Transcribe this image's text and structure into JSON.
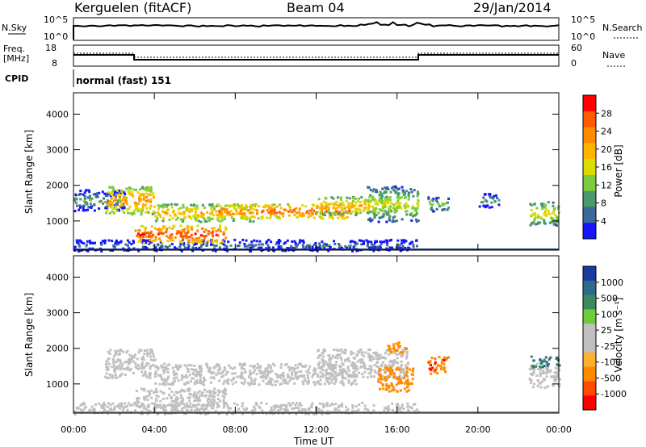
{
  "header": {
    "site": "Kerguelen (fitACF)",
    "beam": "Beam 04",
    "date": "29/Jan/2014"
  },
  "nsky_panel": {
    "left_label": "N.Sky",
    "left_ticks": [
      "10^5",
      "10^0"
    ],
    "right_label": "N.Search",
    "right_ticks": [
      "10^5",
      "10^0"
    ]
  },
  "freq_panel": {
    "left_label_1": "Freq.",
    "left_label_2": "[MHz]",
    "left_ticks": [
      "18",
      "8"
    ],
    "right_label": "Nave",
    "right_ticks": [
      "60",
      "0"
    ]
  },
  "cpid": {
    "label": "CPID",
    "value": "normal (fast) 151"
  },
  "colorbars": {
    "power": {
      "title": "Power [dB]",
      "ticks": [
        "28",
        "24",
        "20",
        "16",
        "12",
        "8",
        "4"
      ],
      "colors": [
        "#ff0000",
        "#ff5a00",
        "#ff8c00",
        "#ffb400",
        "#dcdc00",
        "#7ccd3c",
        "#4a9a6a",
        "#3a6a9a",
        "#1414ff"
      ]
    },
    "velocity": {
      "title": "Velocity [m s⁻¹]",
      "ticks": [
        "1000",
        "500",
        "100",
        "25",
        "-25",
        "-100",
        "-500",
        "-1000"
      ],
      "colors": [
        "#1a3aa0",
        "#2f6a8a",
        "#3b8a5c",
        "#6ccc3a",
        "#c0c0c0",
        "#c0c0c0",
        "#ffb030",
        "#ff8a00",
        "#ff4a00",
        "#ff0000"
      ]
    }
  },
  "x_axis": {
    "title": "Time UT",
    "ticks": [
      "00:00",
      "04:00",
      "08:00",
      "12:00",
      "16:00",
      "20:00",
      "00:00"
    ]
  },
  "chart_data": [
    {
      "type": "heatmap",
      "title": "",
      "xlabel": "",
      "ylabel": "Slant Range [km]",
      "x_range_hours": [
        0,
        24
      ],
      "ylim": [
        180,
        4600
      ],
      "y_ticks": [
        1000,
        2000,
        3000,
        4000
      ],
      "colorbar": "Power [dB]",
      "clim": [
        0,
        32
      ],
      "echo_bands": [
        {
          "t_start": 0.0,
          "t_end": 17.0,
          "r_low": 180,
          "r_high": 500,
          "power_db": 6
        },
        {
          "t_start": 0.0,
          "t_end": 2.5,
          "r_low": 1300,
          "r_high": 1900,
          "power_db": 10
        },
        {
          "t_start": 1.5,
          "t_end": 4.0,
          "r_low": 1200,
          "r_high": 2000,
          "power_db": 24
        },
        {
          "t_start": 3.0,
          "t_end": 7.5,
          "r_low": 400,
          "r_high": 900,
          "power_db": 30
        },
        {
          "t_start": 4.0,
          "t_end": 9.0,
          "r_low": 1000,
          "r_high": 1500,
          "power_db": 22
        },
        {
          "t_start": 7.0,
          "t_end": 14.0,
          "r_low": 1100,
          "r_high": 1500,
          "power_db": 28
        },
        {
          "t_start": 12.0,
          "t_end": 15.5,
          "r_low": 1200,
          "r_high": 1700,
          "power_db": 22
        },
        {
          "t_start": 14.5,
          "t_end": 17.0,
          "r_low": 1000,
          "r_high": 2000,
          "power_db": 16
        },
        {
          "t_start": 17.5,
          "t_end": 18.5,
          "r_low": 1300,
          "r_high": 1700,
          "power_db": 14
        },
        {
          "t_start": 20.0,
          "t_end": 21.0,
          "r_low": 1400,
          "r_high": 1800,
          "power_db": 10
        },
        {
          "t_start": 22.5,
          "t_end": 24.0,
          "r_low": 900,
          "r_high": 1600,
          "power_db": 18
        }
      ]
    },
    {
      "type": "heatmap",
      "title": "",
      "xlabel": "Time UT",
      "ylabel": "Slant Range [km]",
      "x_range_hours": [
        0,
        24
      ],
      "ylim": [
        180,
        4600
      ],
      "y_ticks": [
        1000,
        2000,
        3000,
        4000
      ],
      "colorbar": "Velocity [m s⁻¹]",
      "echo_bands": [
        {
          "t_start": 0.0,
          "t_end": 17.0,
          "r_low": 180,
          "r_high": 500,
          "velocity": 0
        },
        {
          "t_start": 1.5,
          "t_end": 4.0,
          "r_low": 1200,
          "r_high": 2000,
          "velocity": 0
        },
        {
          "t_start": 3.0,
          "t_end": 7.5,
          "r_low": 400,
          "r_high": 900,
          "velocity": 0
        },
        {
          "t_start": 4.0,
          "t_end": 14.0,
          "r_low": 1000,
          "r_high": 1600,
          "velocity": 0
        },
        {
          "t_start": 12.0,
          "t_end": 16.5,
          "r_low": 1200,
          "r_high": 2000,
          "velocity": 0
        },
        {
          "t_start": 15.0,
          "t_end": 16.8,
          "r_low": 800,
          "r_high": 1500,
          "velocity": -300
        },
        {
          "t_start": 15.5,
          "t_end": 16.5,
          "r_low": 1900,
          "r_high": 2200,
          "velocity": -300
        },
        {
          "t_start": 17.5,
          "t_end": 18.5,
          "r_low": 1300,
          "r_high": 1800,
          "velocity": -400
        },
        {
          "t_start": 22.5,
          "t_end": 24.0,
          "r_low": 900,
          "r_high": 1600,
          "velocity": 0
        },
        {
          "t_start": 22.5,
          "t_end": 24.0,
          "r_low": 1500,
          "r_high": 1800,
          "velocity": 300
        }
      ]
    }
  ]
}
